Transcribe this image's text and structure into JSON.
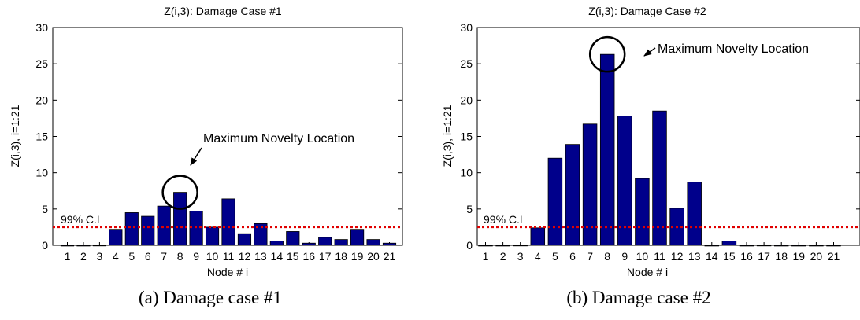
{
  "chart_data": [
    {
      "type": "bar",
      "title": "Z(i,3): Damage Case #1",
      "xlabel": "Node # i",
      "ylabel": "Z(i,3), i=1:21",
      "categories": [
        "1",
        "2",
        "3",
        "4",
        "5",
        "6",
        "7",
        "8",
        "9",
        "10",
        "11",
        "12",
        "13",
        "14",
        "15",
        "16",
        "17",
        "18",
        "19",
        "20",
        "21"
      ],
      "values": [
        -0.1,
        -0.1,
        0,
        2.2,
        4.5,
        4.0,
        5.4,
        7.3,
        4.7,
        2.5,
        6.4,
        1.6,
        3.0,
        0.6,
        1.9,
        0.3,
        1.1,
        0.8,
        2.2,
        0.8,
        0.3
      ],
      "ylim": [
        0,
        30
      ],
      "yticks": [
        0,
        5,
        10,
        15,
        20,
        25,
        30
      ],
      "threshold": {
        "value": 2.5,
        "label": "99% C.L",
        "color": "#e00000"
      },
      "annotation": {
        "text": "Maximum Novelty Location",
        "node": 8
      },
      "bar_color": "#00008b",
      "caption": "(a) Damage case #1"
    },
    {
      "type": "bar",
      "title": "Z(i,3): Damage Case #2",
      "xlabel": "Node # i",
      "ylabel": "Z(i,3), i=1:21",
      "categories": [
        "1",
        "2",
        "3",
        "4",
        "5",
        "6",
        "7",
        "8",
        "9",
        "10",
        "11",
        "12",
        "13",
        "14",
        "15",
        "16",
        "17",
        "18",
        "19",
        "20",
        "21"
      ],
      "values": [
        -0.1,
        -0.1,
        0,
        2.4,
        12.0,
        13.9,
        16.7,
        26.3,
        17.8,
        9.2,
        18.5,
        5.1,
        8.7,
        -0.1,
        0.6,
        -0.1,
        0,
        -0.1,
        -0.1,
        -0.1,
        -0.1
      ],
      "ylim": [
        0,
        30
      ],
      "yticks": [
        0,
        5,
        10,
        15,
        20,
        25,
        30
      ],
      "threshold": {
        "value": 2.5,
        "label": "99% C.L",
        "color": "#e00000"
      },
      "annotation": {
        "text": "Maximum Novelty Location",
        "node": 8
      },
      "bar_color": "#00008b",
      "caption": "(b) Damage case #2"
    }
  ]
}
